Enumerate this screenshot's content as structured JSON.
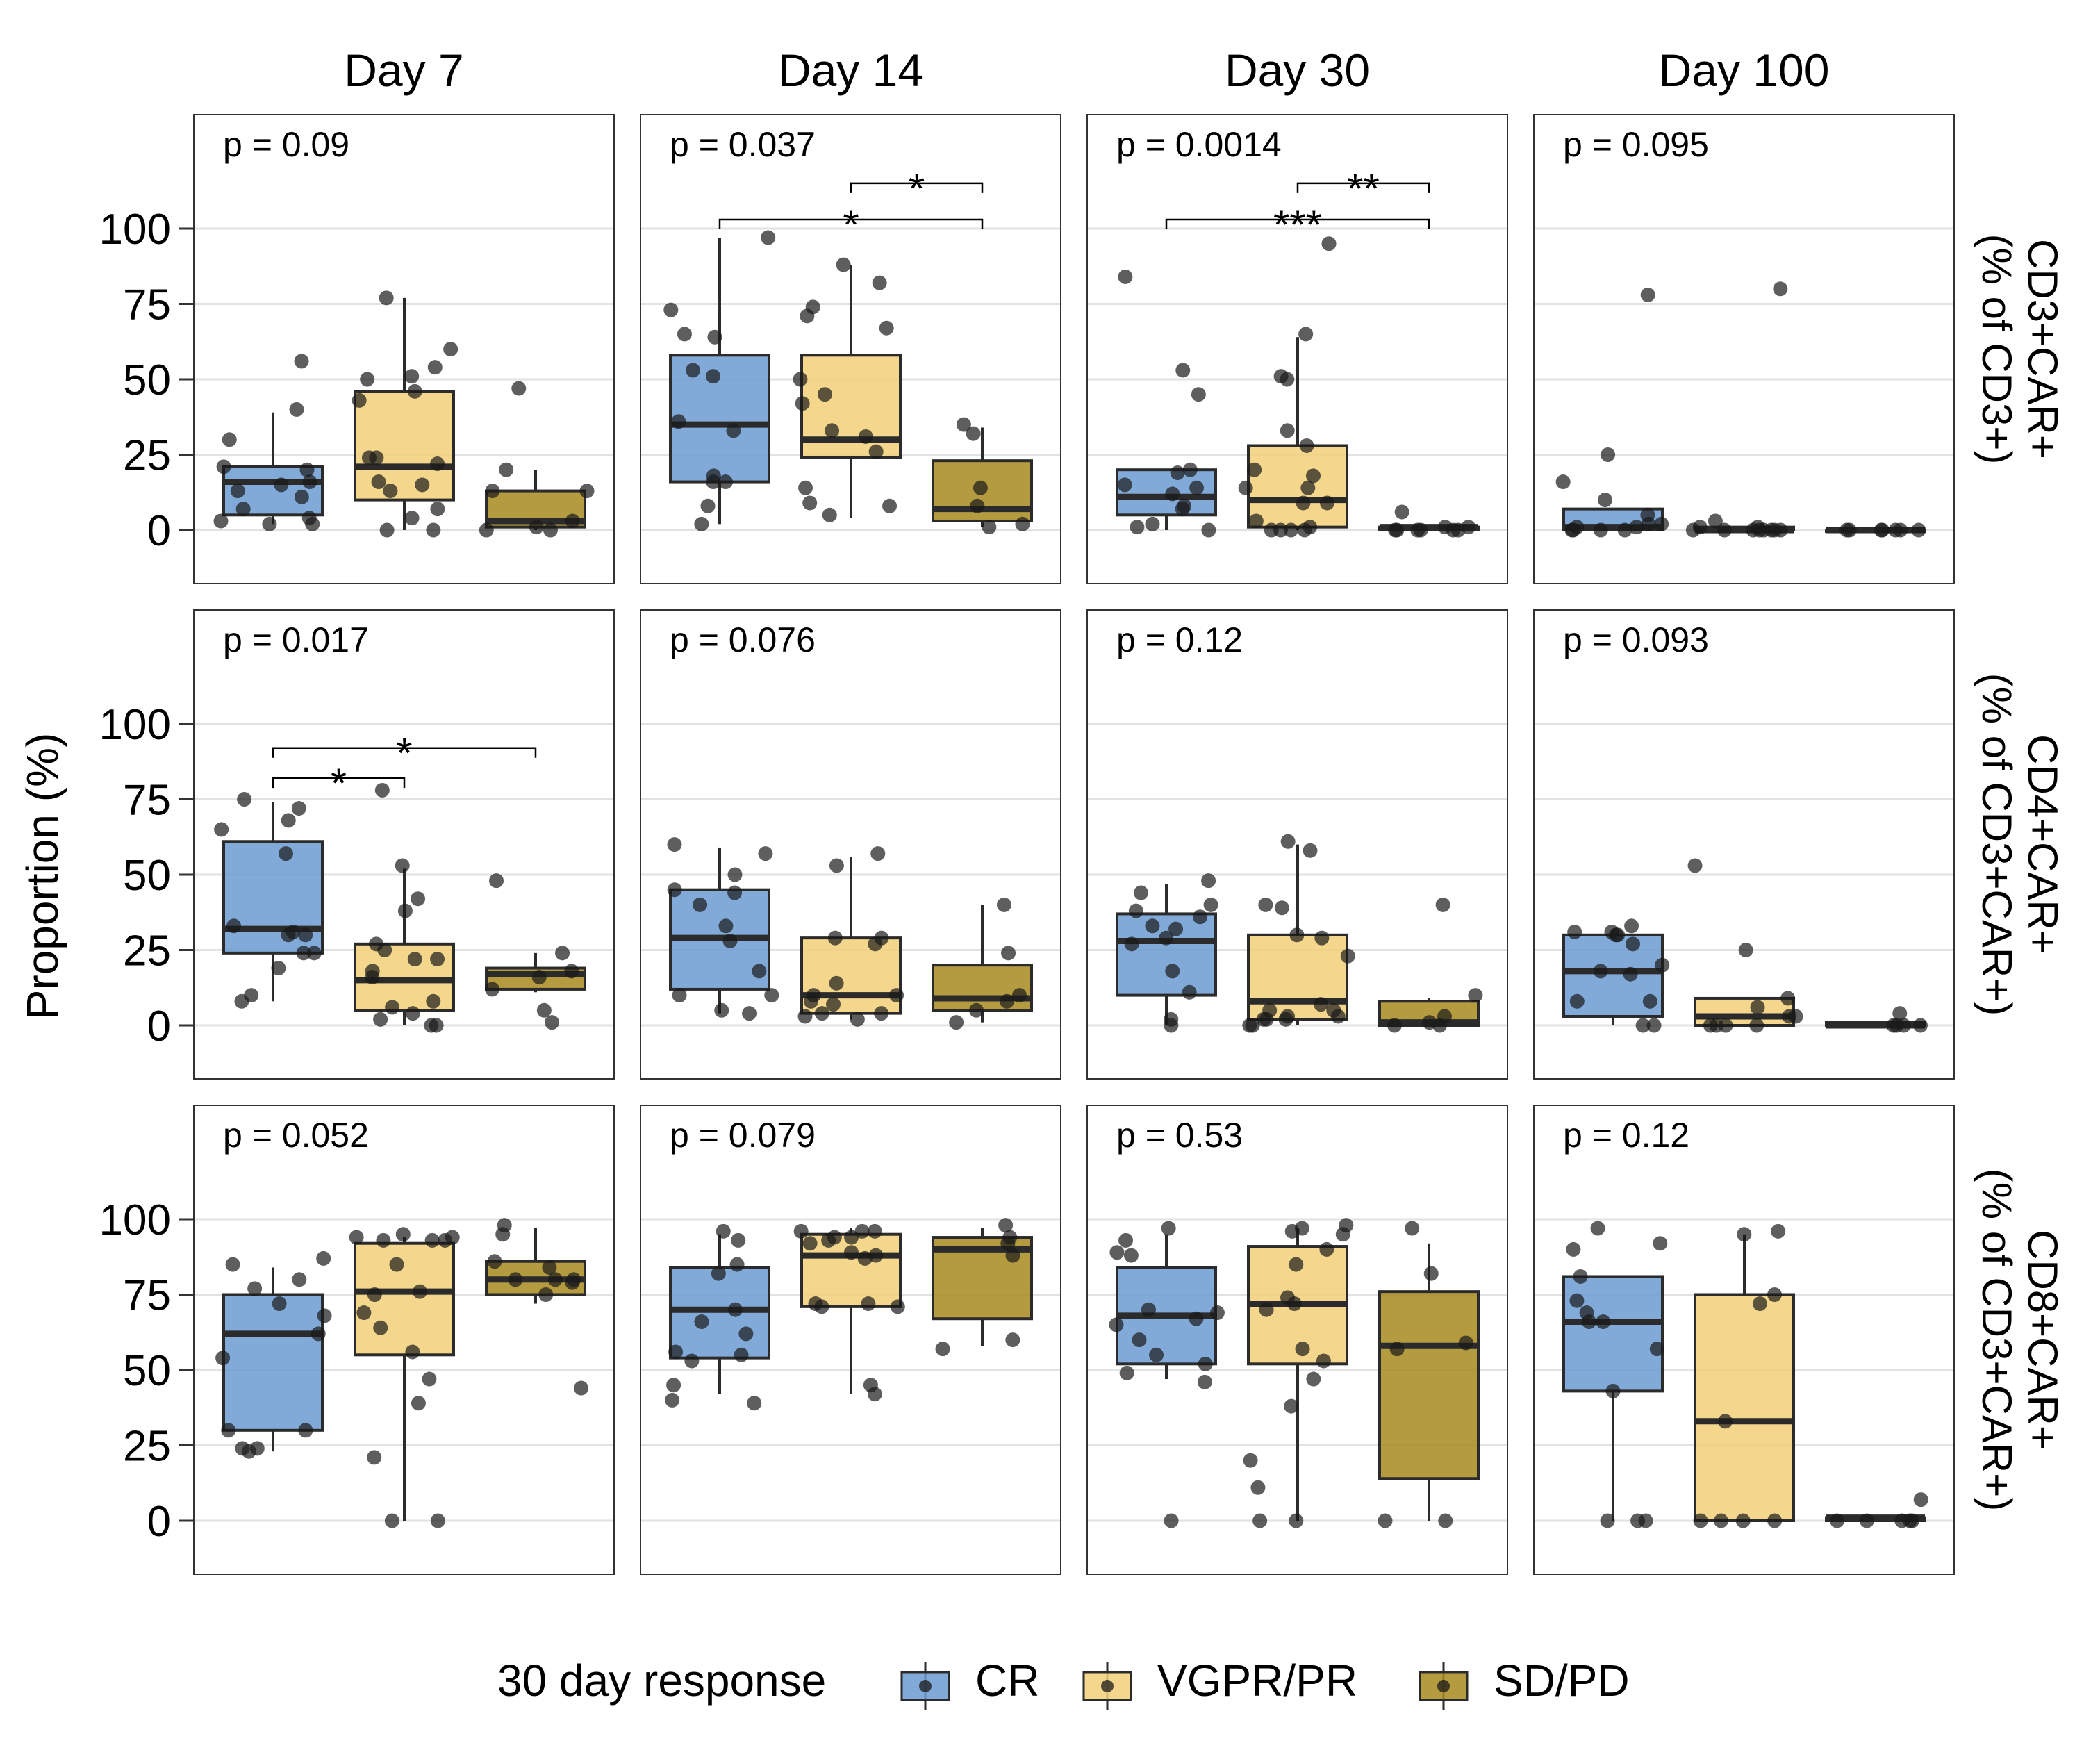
{
  "chart_data": {
    "type": "box",
    "ylabel": "Proportion (%)",
    "ylim": [
      -17,
      130
    ],
    "yticks": [
      0,
      25,
      50,
      75,
      100
    ],
    "grid": true,
    "legend": {
      "title": "30 day response",
      "position": "bottom",
      "entries": [
        {
          "name": "CR",
          "color": "#6c9bd2"
        },
        {
          "name": "VGPR/PR",
          "color": "#f2d078"
        },
        {
          "name": "SD/PD",
          "color": "#a78a1e"
        }
      ]
    },
    "columns": [
      "Day 7",
      "Day 14",
      "Day 30",
      "Day 100"
    ],
    "rows": [
      {
        "label_lines": [
          "CD3+CAR+",
          "(% of CD3+)"
        ]
      },
      {
        "label_lines": [
          "CD4+CAR+",
          "(% of CD3+CAR+)"
        ]
      },
      {
        "label_lines": [
          "CD8+CAR+",
          "(% of CD3+CAR+)"
        ]
      }
    ],
    "panels": [
      {
        "row": 0,
        "col": 0,
        "p_value": "p = 0.09",
        "comparisons": [],
        "boxes": [
          {
            "group": "CR",
            "min": 2,
            "q1": 5,
            "median": 16,
            "q3": 21,
            "max": 39,
            "points": [
              3,
              2,
              4,
              21,
              20,
              7,
              30,
              16,
              11,
              56,
              40,
              15,
              13,
              2
            ]
          },
          {
            "group": "VGPR/PR",
            "min": 0,
            "q1": 10,
            "median": 21,
            "q3": 46,
            "max": 77,
            "points": [
              7,
              4,
              0,
              13,
              24,
              51,
              24,
              16,
              22,
              60,
              54,
              50,
              43,
              46,
              77,
              0,
              15
            ]
          },
          {
            "group": "SD/PD",
            "min": 0,
            "q1": 1,
            "median": 3,
            "q3": 13,
            "max": 20,
            "points": [
              13,
              3,
              0,
              20,
              47,
              13,
              0,
              1
            ]
          }
        ]
      },
      {
        "row": 0,
        "col": 1,
        "p_value": "p = 0.037",
        "comparisons": [
          {
            "from": 0,
            "to": 2,
            "y": 103,
            "label": "*"
          },
          {
            "from": 1,
            "to": 2,
            "y": 115,
            "label": "*"
          }
        ],
        "boxes": [
          {
            "group": "CR",
            "min": 2,
            "q1": 16,
            "median": 35,
            "q3": 58,
            "max": 97,
            "points": [
              2,
              18,
              65,
              73,
              51,
              36,
              16,
              16,
              53,
              64,
              33,
              97,
              8
            ]
          },
          {
            "group": "VGPR/PR",
            "min": 4,
            "q1": 24,
            "median": 30,
            "q3": 58,
            "max": 88,
            "points": [
              9,
              88,
              67,
              71,
              82,
              50,
              33,
              26,
              31,
              45,
              8,
              42,
              5,
              14,
              74
            ]
          },
          {
            "group": "SD/PD",
            "min": 1,
            "q1": 3,
            "median": 7,
            "q3": 23,
            "max": 34,
            "points": [
              14,
              8,
              2,
              1,
              32,
              35
            ]
          }
        ]
      },
      {
        "row": 0,
        "col": 2,
        "p_value": "p = 0.0014",
        "comparisons": [
          {
            "from": 0,
            "to": 2,
            "y": 103,
            "label": "***"
          },
          {
            "from": 1,
            "to": 2,
            "y": 115,
            "label": "**"
          }
        ],
        "boxes": [
          {
            "group": "CR",
            "min": 0,
            "q1": 5,
            "median": 11,
            "q3": 20,
            "max": 20,
            "points": [
              45,
              84,
              53,
              19,
              12,
              15,
              0,
              8,
              2,
              20,
              7,
              1,
              14
            ]
          },
          {
            "group": "VGPR/PR",
            "min": 0,
            "q1": 1,
            "median": 10,
            "q3": 28,
            "max": 64,
            "points": [
              95,
              3,
              18,
              28,
              9,
              0,
              50,
              9,
              0,
              1,
              51,
              65,
              14,
              14,
              33,
              0,
              20,
              0
            ]
          },
          {
            "group": "SD/PD",
            "min": 0,
            "q1": 0,
            "median": 1,
            "q3": 1,
            "max": 1,
            "points": [
              0,
              0,
              1,
              0,
              0,
              0,
              6,
              1,
              0
            ]
          }
        ]
      },
      {
        "row": 0,
        "col": 3,
        "p_value": "p = 0.095",
        "comparisons": [],
        "boxes": [
          {
            "group": "CR",
            "min": 0,
            "q1": 0,
            "median": 1,
            "q3": 7,
            "max": 7,
            "points": [
              1,
              5,
              0,
              0,
              78,
              16,
              10,
              25,
              0,
              2,
              1,
              0,
              2
            ]
          },
          {
            "group": "VGPR/PR",
            "min": 0,
            "q1": 0,
            "median": 0,
            "q3": 1,
            "max": 1,
            "points": [
              1,
              1,
              3,
              0,
              0,
              0,
              0,
              80,
              0,
              0,
              0,
              0
            ]
          },
          {
            "group": "SD/PD",
            "min": 0,
            "q1": 0,
            "median": 0,
            "q3": 0,
            "max": 0,
            "points": [
              0,
              0,
              0,
              0,
              0,
              0,
              0
            ]
          }
        ]
      },
      {
        "row": 1,
        "col": 0,
        "p_value": "p = 0.017",
        "comparisons": [
          {
            "from": 0,
            "to": 1,
            "y": 82,
            "label": "*"
          },
          {
            "from": 0,
            "to": 2,
            "y": 92,
            "label": "*"
          }
        ],
        "boxes": [
          {
            "group": "CR",
            "min": 8,
            "q1": 24,
            "median": 32,
            "q3": 61,
            "max": 74,
            "points": [
              24,
              31,
              75,
              68,
              57,
              19,
              30,
              72,
              65,
              24,
              30,
              33,
              10,
              8
            ]
          },
          {
            "group": "VGPR/PR",
            "min": 0,
            "q1": 5,
            "median": 15,
            "q3": 27,
            "max": 52,
            "points": [
              8,
              4,
              53,
              18,
              27,
              2,
              22,
              78,
              38,
              42,
              6,
              22,
              0,
              25,
              0,
              16
            ]
          },
          {
            "group": "SD/PD",
            "min": 11,
            "q1": 12,
            "median": 17,
            "q3": 19,
            "max": 24,
            "points": [
              16,
              12,
              24,
              18,
              1,
              48,
              5
            ]
          }
        ]
      },
      {
        "row": 1,
        "col": 1,
        "p_value": "p = 0.076",
        "comparisons": [],
        "boxes": [
          {
            "group": "CR",
            "min": 4,
            "q1": 12,
            "median": 29,
            "q3": 45,
            "max": 59,
            "points": [
              5,
              60,
              28,
              18,
              50,
              40,
              45,
              10,
              10,
              57,
              33,
              4,
              44
            ]
          },
          {
            "group": "VGPR/PR",
            "min": 2,
            "q1": 4,
            "median": 10,
            "q3": 29,
            "max": 56,
            "points": [
              2,
              8,
              27,
              29,
              53,
              4,
              14,
              10,
              57,
              4,
              10,
              29,
              7,
              3
            ]
          },
          {
            "group": "SD/PD",
            "min": 1,
            "q1": 5,
            "median": 9,
            "q3": 20,
            "max": 40,
            "points": [
              10,
              8,
              40,
              5,
              1,
              24
            ]
          }
        ]
      },
      {
        "row": 1,
        "col": 2,
        "p_value": "p = 0.12",
        "comparisons": [],
        "boxes": [
          {
            "group": "CR",
            "min": 0,
            "q1": 10,
            "median": 28,
            "q3": 37,
            "max": 47,
            "points": [
              2,
              0,
              44,
              18,
              29,
              11,
              40,
              38,
              27,
              32,
              48,
              36,
              33
            ]
          },
          {
            "group": "VGPR/PR",
            "min": 0,
            "q1": 2,
            "median": 8,
            "q3": 30,
            "max": 60,
            "points": [
              23,
              39,
              3,
              30,
              61,
              5,
              40,
              3,
              2,
              0,
              7,
              58,
              2,
              29,
              0,
              5,
              2
            ]
          },
          {
            "group": "SD/PD",
            "min": 0,
            "q1": 0,
            "median": 1,
            "q3": 8,
            "max": 9,
            "points": [
              40,
              1,
              3,
              0,
              10,
              0
            ]
          }
        ]
      },
      {
        "row": 1,
        "col": 3,
        "p_value": "p = 0.093",
        "comparisons": [],
        "boxes": [
          {
            "group": "CR",
            "min": 0,
            "q1": 3,
            "median": 18,
            "q3": 30,
            "max": 32,
            "points": [
              18,
              30,
              0,
              27,
              20,
              30,
              31,
              8,
              0,
              33,
              17,
              8,
              31
            ]
          },
          {
            "group": "VGPR/PR",
            "min": 0,
            "q1": 0,
            "median": 3,
            "q3": 9,
            "max": 9,
            "points": [
              9,
              53,
              3,
              0,
              6,
              0,
              25,
              0,
              3,
              0
            ]
          },
          {
            "group": "SD/PD",
            "min": 0,
            "q1": 0,
            "median": 0,
            "q3": 1,
            "max": 1,
            "points": [
              4,
              0,
              0,
              0,
              0
            ]
          }
        ]
      },
      {
        "row": 2,
        "col": 0,
        "p_value": "p = 0.052",
        "comparisons": [],
        "boxes": [
          {
            "group": "CR",
            "min": 23,
            "q1": 30,
            "median": 62,
            "q3": 75,
            "max": 84,
            "points": [
              24,
              62,
              72,
              85,
              30,
              80,
              30,
              24,
              68,
              54,
              23,
              87,
              77
            ]
          },
          {
            "group": "VGPR/PR",
            "min": 0,
            "q1": 55,
            "median": 76,
            "q3": 92,
            "max": 94,
            "points": [
              0,
              21,
              69,
              85,
              93,
              93,
              94,
              94,
              47,
              64,
              93,
              75,
              76,
              56,
              39,
              0,
              95
            ]
          },
          {
            "group": "SD/PD",
            "min": 72,
            "q1": 75,
            "median": 80,
            "q3": 86,
            "max": 97,
            "points": [
              75,
              44,
              95,
              84,
              80,
              79,
              86,
              98,
              80,
              80
            ]
          }
        ]
      },
      {
        "row": 2,
        "col": 1,
        "p_value": "p = 0.079",
        "comparisons": [],
        "boxes": [
          {
            "group": "CR",
            "min": 42,
            "q1": 54,
            "median": 70,
            "q3": 84,
            "max": 95,
            "points": [
              53,
              55,
              82,
              62,
              39,
              93,
              70,
              56,
              45,
              66,
              96,
              40,
              85
            ]
          },
          {
            "group": "VGPR/PR",
            "min": 42,
            "q1": 71,
            "median": 88,
            "q3": 95,
            "max": 97,
            "points": [
              71,
              87,
              45,
              72,
              94,
              96,
              96,
              93,
              94,
              71,
              88,
              72,
              92,
              96,
              42,
              89
            ]
          },
          {
            "group": "SD/PD",
            "min": 58,
            "q1": 67,
            "median": 90,
            "q3": 94,
            "max": 97,
            "points": [
              60,
              98,
              94,
              92,
              88,
              57
            ]
          }
        ]
      },
      {
        "row": 2,
        "col": 2,
        "p_value": "p = 0.53",
        "comparisons": [],
        "boxes": [
          {
            "group": "CR",
            "min": 47,
            "q1": 52,
            "median": 68,
            "q3": 84,
            "max": 95,
            "points": [
              89,
              65,
              60,
              67,
              0,
              93,
              70,
              69,
              55,
              49,
              97,
              46,
              88,
              52
            ]
          },
          {
            "group": "VGPR/PR",
            "min": 0,
            "q1": 52,
            "median": 72,
            "q3": 91,
            "max": 97,
            "points": [
              53,
              47,
              38,
              57,
              85,
              90,
              97,
              74,
              20,
              70,
              11,
              96,
              0,
              95,
              98,
              0,
              72
            ]
          },
          {
            "group": "SD/PD",
            "min": 0,
            "q1": 14,
            "median": 58,
            "q3": 76,
            "max": 92,
            "points": [
              0,
              57,
              59,
              97,
              82,
              0
            ]
          }
        ]
      },
      {
        "row": 2,
        "col": 3,
        "p_value": "p = 0.12",
        "comparisons": [],
        "boxes": [
          {
            "group": "CR",
            "min": 0,
            "q1": 43,
            "median": 66,
            "q3": 81,
            "max": 81,
            "points": [
              0,
              43,
              92,
              97,
              81,
              66,
              57,
              66,
              90,
              0,
              69,
              0,
              73
            ]
          },
          {
            "group": "VGPR/PR",
            "min": 0,
            "q1": 0,
            "median": 33,
            "q3": 75,
            "max": 95,
            "points": [
              72,
              0,
              33,
              0,
              0,
              95,
              96,
              0,
              75
            ]
          },
          {
            "group": "SD/PD",
            "min": 0,
            "q1": 0,
            "median": 1,
            "q3": 1,
            "max": 1,
            "points": [
              0,
              0,
              7,
              0,
              0,
              0
            ]
          }
        ]
      }
    ]
  }
}
